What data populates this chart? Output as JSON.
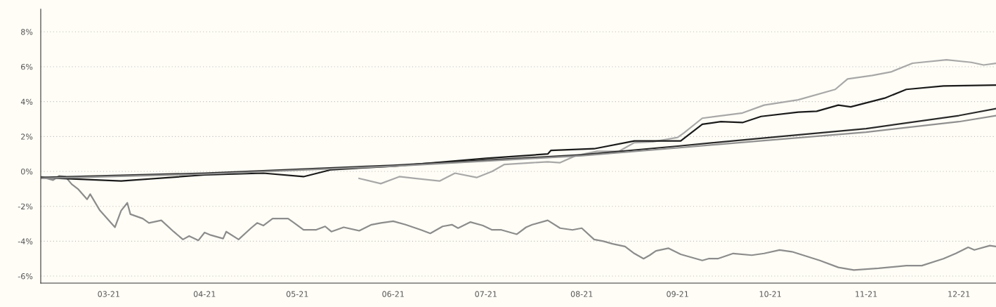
{
  "chart_data": {
    "type": "line",
    "xlim": [
      "2021-02-07",
      "2021-12-13"
    ],
    "ylim": [
      -6.4,
      9.3
    ],
    "xticks": [
      {
        "value": "2021-03-01",
        "label": "03-21"
      },
      {
        "value": "2021-04-01",
        "label": "04-21"
      },
      {
        "value": "2021-05-01",
        "label": "05-21"
      },
      {
        "value": "2021-06-01",
        "label": "06-21"
      },
      {
        "value": "2021-07-01",
        "label": "07-21"
      },
      {
        "value": "2021-08-01",
        "label": "08-21"
      },
      {
        "value": "2021-09-01",
        "label": "09-21"
      },
      {
        "value": "2021-10-01",
        "label": "10-21"
      },
      {
        "value": "2021-11-01",
        "label": "11-21"
      },
      {
        "value": "2021-12-01",
        "label": "12-21"
      }
    ],
    "yticks": [
      {
        "value": -6,
        "label": "-6%"
      },
      {
        "value": -4,
        "label": "-4%"
      },
      {
        "value": -2,
        "label": "-2%"
      },
      {
        "value": 0,
        "label": "0%"
      },
      {
        "value": 2,
        "label": "2%"
      },
      {
        "value": 4,
        "label": "4%"
      },
      {
        "value": 6,
        "label": "6%"
      },
      {
        "value": 8,
        "label": "8%"
      }
    ],
    "grid": "y",
    "marker": "none",
    "line_style": "solid",
    "series": [
      {
        "color": "#8c8c8c",
        "x": [
          "2021-02-07",
          "2021-02-11",
          "2021-02-13",
          "2021-02-15",
          "2021-02-17",
          "2021-02-19",
          "2021-02-22",
          "2021-02-23",
          "2021-02-26",
          "2021-03-03",
          "2021-03-05",
          "2021-03-07",
          "2021-03-08",
          "2021-03-12",
          "2021-03-14",
          "2021-03-18",
          "2021-03-22",
          "2021-03-25",
          "2021-03-27",
          "2021-03-30",
          "2021-04-01",
          "2021-04-03",
          "2021-04-07",
          "2021-04-08",
          "2021-04-12",
          "2021-04-16",
          "2021-04-18",
          "2021-04-20",
          "2021-04-23",
          "2021-04-28",
          "2021-04-30",
          "2021-05-03",
          "2021-05-07",
          "2021-05-10",
          "2021-05-12",
          "2021-05-16",
          "2021-05-21",
          "2021-05-25",
          "2021-05-28",
          "2021-06-01",
          "2021-06-05",
          "2021-06-10",
          "2021-06-13",
          "2021-06-17",
          "2021-06-20",
          "2021-06-22",
          "2021-06-26",
          "2021-06-30",
          "2021-07-03",
          "2021-07-06",
          "2021-07-11",
          "2021-07-14",
          "2021-07-16",
          "2021-07-21",
          "2021-07-25",
          "2021-07-29",
          "2021-08-01",
          "2021-08-05",
          "2021-08-08",
          "2021-08-11",
          "2021-08-15",
          "2021-08-18",
          "2021-08-21",
          "2021-08-23",
          "2021-08-25",
          "2021-08-29",
          "2021-09-02",
          "2021-09-09",
          "2021-09-11",
          "2021-09-14",
          "2021-09-19",
          "2021-09-25",
          "2021-09-29",
          "2021-10-04",
          "2021-10-08",
          "2021-10-17",
          "2021-10-23",
          "2021-10-28",
          "2021-11-05",
          "2021-11-14",
          "2021-11-19",
          "2021-11-26",
          "2021-11-30",
          "2021-12-04",
          "2021-12-06",
          "2021-12-11",
          "2021-12-13"
        ],
        "values": [
          -0.3,
          -0.5,
          -0.25,
          -0.3,
          -0.73,
          -1.0,
          -1.6,
          -1.3,
          -2.2,
          -3.2,
          -2.25,
          -1.8,
          -2.45,
          -2.7,
          -2.95,
          -2.8,
          -3.45,
          -3.9,
          -3.7,
          -3.95,
          -3.5,
          -3.65,
          -3.85,
          -3.45,
          -3.9,
          -3.25,
          -2.95,
          -3.1,
          -2.7,
          -2.7,
          -2.95,
          -3.35,
          -3.35,
          -3.15,
          -3.45,
          -3.2,
          -3.4,
          -3.05,
          -2.95,
          -2.85,
          -3.05,
          -3.35,
          -3.55,
          -3.15,
          -3.05,
          -3.25,
          -2.9,
          -3.1,
          -3.35,
          -3.35,
          -3.6,
          -3.2,
          -3.05,
          -2.8,
          -3.25,
          -3.35,
          -3.25,
          -3.9,
          -4.0,
          -4.15,
          -4.3,
          -4.7,
          -5.0,
          -4.8,
          -4.55,
          -4.4,
          -4.75,
          -5.1,
          -5.0,
          -5.0,
          -4.7,
          -4.8,
          -4.7,
          -4.5,
          -4.6,
          -5.1,
          -5.5,
          -5.65,
          -5.55,
          -5.4,
          -5.4,
          -5.0,
          -4.7,
          -4.35,
          -4.5,
          -4.25,
          -4.3
        ]
      },
      {
        "color": "#a8a8a8",
        "x": [
          "2021-05-21",
          "2021-05-28",
          "2021-06-03",
          "2021-06-08",
          "2021-06-16",
          "2021-06-21",
          "2021-06-28",
          "2021-07-03",
          "2021-07-07",
          "2021-07-16",
          "2021-07-21",
          "2021-07-25",
          "2021-07-30",
          "2021-08-06",
          "2021-08-13",
          "2021-08-18",
          "2021-08-24",
          "2021-09-01",
          "2021-09-03",
          "2021-09-09",
          "2021-09-22",
          "2021-09-29",
          "2021-10-10",
          "2021-10-22",
          "2021-10-26",
          "2021-11-03",
          "2021-11-09",
          "2021-11-16",
          "2021-11-27",
          "2021-12-05",
          "2021-12-09",
          "2021-12-13"
        ],
        "values": [
          -0.4,
          -0.7,
          -0.3,
          -0.4,
          -0.55,
          -0.1,
          -0.35,
          0.0,
          0.4,
          0.5,
          0.55,
          0.5,
          0.9,
          1.15,
          1.15,
          1.65,
          1.7,
          1.95,
          2.2,
          3.05,
          3.35,
          3.8,
          4.1,
          4.7,
          5.3,
          5.5,
          5.7,
          6.2,
          6.4,
          6.25,
          6.1,
          6.2
        ]
      },
      {
        "color": "#1a1a1a",
        "x": [
          "2021-02-07",
          "2021-03-05",
          "2021-04-01",
          "2021-04-20",
          "2021-05-03",
          "2021-05-12",
          "2021-06-01",
          "2021-07-01",
          "2021-07-21",
          "2021-07-22",
          "2021-08-05",
          "2021-08-18",
          "2021-08-29",
          "2021-09-02",
          "2021-09-09",
          "2021-09-15",
          "2021-09-22",
          "2021-09-28",
          "2021-10-10",
          "2021-10-16",
          "2021-10-23",
          "2021-10-27",
          "2021-11-07",
          "2021-11-14",
          "2021-11-26",
          "2021-12-13"
        ],
        "values": [
          -0.35,
          -0.55,
          -0.2,
          -0.1,
          -0.3,
          0.1,
          0.3,
          0.75,
          1.0,
          1.2,
          1.3,
          1.75,
          1.75,
          1.75,
          2.7,
          2.85,
          2.8,
          3.15,
          3.4,
          3.45,
          3.8,
          3.7,
          4.2,
          4.7,
          4.9,
          4.95
        ]
      },
      {
        "color": "#2a2a2a",
        "x": [
          "2021-02-07",
          "2021-04-01",
          "2021-06-01",
          "2021-08-01",
          "2021-09-01",
          "2021-10-01",
          "2021-11-01",
          "2021-12-01",
          "2021-12-13"
        ],
        "values": [
          -0.35,
          -0.1,
          0.35,
          0.95,
          1.45,
          1.95,
          2.45,
          3.2,
          3.6
        ]
      },
      {
        "color": "#909090",
        "x": [
          "2021-02-07",
          "2021-04-01",
          "2021-06-01",
          "2021-08-01",
          "2021-09-01",
          "2021-10-01",
          "2021-11-01",
          "2021-12-01",
          "2021-12-13"
        ],
        "values": [
          -0.4,
          -0.15,
          0.3,
          0.9,
          1.35,
          1.8,
          2.25,
          2.85,
          3.2
        ]
      }
    ]
  }
}
